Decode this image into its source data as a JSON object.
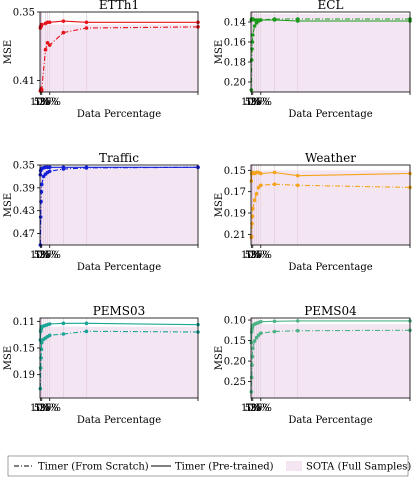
{
  "chart_data": [
    {
      "type": "line",
      "title": "ETTh1",
      "xlabel": "Data Percentage",
      "ylabel": "MSE",
      "y_reversed": true,
      "ylim": [
        0.35,
        0.42
      ],
      "yticks": [
        0.35,
        0.41
      ],
      "ytick_labels": [
        "0.35",
        "0.41"
      ],
      "sota": 0.361,
      "color": "#e8121b",
      "x": [
        100,
        75,
        50,
        25,
        20,
        15,
        5,
        4,
        3,
        2,
        1
      ],
      "series": [
        {
          "name": "Timer (From Scratch)",
          "style": "dashdot",
          "values": [
            0.363,
            0.364,
            0.368,
            0.379,
            0.377,
            0.383,
            0.418,
            0.419,
            0.417,
            0.419,
            0.419
          ]
        },
        {
          "name": "Timer (Pre-trained)",
          "style": "solid",
          "values": [
            0.359,
            0.359,
            0.358,
            0.359,
            0.359,
            0.36,
            0.361,
            0.362,
            0.362,
            0.363,
            0.364
          ]
        }
      ]
    },
    {
      "type": "line",
      "title": "ECL",
      "xlabel": "Data Percentage",
      "ylabel": "MSE",
      "y_reversed": true,
      "ylim": [
        0.13,
        0.21
      ],
      "yticks": [
        0.14,
        0.16,
        0.18,
        0.2
      ],
      "ytick_labels": [
        "0.14",
        "0.16",
        "0.18",
        "0.20"
      ],
      "sota": 0.132,
      "color": "#1a9a1a",
      "x": [
        100,
        75,
        50,
        25,
        20,
        15,
        10,
        5,
        4,
        3,
        2,
        1
      ],
      "series": [
        {
          "name": "Timer (From Scratch)",
          "style": "dashdot",
          "values": [
            0.137,
            0.137,
            0.137,
            0.138,
            0.139,
            0.141,
            0.144,
            0.153,
            0.16,
            0.167,
            0.178,
            0.208
          ]
        },
        {
          "name": "Timer (Pre-trained)",
          "style": "solid",
          "values": [
            0.139,
            0.139,
            0.138,
            0.138,
            0.138,
            0.138,
            0.138,
            0.137,
            0.137,
            0.137,
            0.137,
            0.138
          ]
        }
      ]
    },
    {
      "type": "line",
      "title": "Traffic",
      "xlabel": "Data Percentage",
      "ylabel": "MSE",
      "y_reversed": true,
      "ylim": [
        0.35,
        0.49
      ],
      "yticks": [
        0.35,
        0.39,
        0.43,
        0.47
      ],
      "ytick_labels": [
        "0.35",
        "0.39",
        "0.43",
        "0.47"
      ],
      "sota": 0.353,
      "color": "#1420d8",
      "x": [
        100,
        75,
        50,
        25,
        20,
        15,
        10,
        5,
        4,
        3,
        2,
        1
      ],
      "series": [
        {
          "name": "Timer (From Scratch)",
          "style": "dashdot",
          "values": [
            0.354,
            0.355,
            0.357,
            0.361,
            0.363,
            0.366,
            0.37,
            0.384,
            0.397,
            0.414,
            0.441,
            0.495
          ]
        },
        {
          "name": "Timer (Pre-trained)",
          "style": "solid",
          "values": [
            0.354,
            0.354,
            0.354,
            0.354,
            0.354,
            0.354,
            0.355,
            0.356,
            0.357,
            0.358,
            0.36,
            0.367
          ]
        }
      ]
    },
    {
      "type": "line",
      "title": "Weather",
      "xlabel": "Data Percentage",
      "ylabel": "MSE",
      "y_reversed": true,
      "ylim": [
        0.145,
        0.22
      ],
      "yticks": [
        0.15,
        0.17,
        0.19,
        0.21
      ],
      "ytick_labels": [
        "0.15",
        "0.17",
        "0.19",
        "0.21"
      ],
      "sota": 0.15,
      "color": "#f5a31a",
      "x": [
        100,
        75,
        50,
        25,
        20,
        15,
        10,
        5,
        4,
        3,
        2,
        1
      ],
      "series": [
        {
          "name": "Timer (From Scratch)",
          "style": "dashdot",
          "values": [
            0.166,
            0.164,
            0.163,
            0.164,
            0.166,
            0.172,
            0.178,
            0.186,
            0.193,
            0.2,
            0.212,
            0.213
          ]
        },
        {
          "name": "Timer (Pre-trained)",
          "style": "solid",
          "values": [
            0.153,
            0.155,
            0.152,
            0.153,
            0.152,
            0.152,
            0.153,
            0.152,
            0.152,
            0.153,
            0.153,
            0.16
          ]
        }
      ]
    },
    {
      "type": "line",
      "title": "PEMS03",
      "xlabel": "Data Percentage",
      "ylabel": "MSE",
      "y_reversed": true,
      "ylim": [
        0.105,
        0.225
      ],
      "yticks": [
        0.11,
        0.15,
        0.19
      ],
      "ytick_labels": [
        "0.11",
        "0.15",
        "0.19"
      ],
      "sota": 0.118,
      "color": "#1aa595",
      "x": [
        100,
        75,
        50,
        25,
        20,
        15,
        10,
        5,
        4,
        3,
        2,
        1
      ],
      "series": [
        {
          "name": "Timer (From Scratch)",
          "style": "dashdot",
          "values": [
            0.126,
            0.125,
            0.129,
            0.131,
            0.133,
            0.135,
            0.137,
            0.142,
            0.152,
            0.165,
            0.18,
            0.211
          ]
        },
        {
          "name": "Timer (Pre-trained)",
          "style": "solid",
          "values": [
            0.115,
            0.113,
            0.113,
            0.114,
            0.115,
            0.116,
            0.117,
            0.118,
            0.12,
            0.122,
            0.125,
            0.138
          ]
        }
      ]
    },
    {
      "type": "line",
      "title": "PEMS04",
      "xlabel": "Data Percentage",
      "ylabel": "MSE",
      "y_reversed": true,
      "ylim": [
        0.095,
        0.29
      ],
      "yticks": [
        0.1,
        0.15,
        0.2,
        0.25
      ],
      "ytick_labels": [
        "0.10",
        "0.15",
        "0.20",
        "0.25"
      ],
      "sota": 0.11,
      "color": "#4db386",
      "x": [
        100,
        75,
        50,
        25,
        20,
        15,
        10,
        5,
        4,
        3,
        2,
        1
      ],
      "series": [
        {
          "name": "Timer (From Scratch)",
          "style": "dashdot",
          "values": [
            0.125,
            0.126,
            0.128,
            0.132,
            0.137,
            0.143,
            0.151,
            0.169,
            0.189,
            0.21,
            0.24,
            0.275
          ]
        },
        {
          "name": "Timer (Pre-trained)",
          "style": "solid",
          "values": [
            0.102,
            0.102,
            0.103,
            0.104,
            0.106,
            0.108,
            0.11,
            0.113,
            0.117,
            0.122,
            0.129,
            0.155
          ]
        }
      ]
    }
  ],
  "xticks": [
    100,
    25,
    5,
    1
  ],
  "xtick_labels": [
    "100%",
    "25%",
    "5%",
    "1%"
  ],
  "legend": {
    "position": "bottom",
    "items": [
      {
        "label": "Timer (From Scratch)",
        "kind": "dashdot-line"
      },
      {
        "label": "Timer (Pre-trained)",
        "kind": "solid-line"
      },
      {
        "label": "SOTA (Full Samples)",
        "kind": "shaded-band"
      }
    ]
  },
  "sota_color": "#f3e6f2"
}
